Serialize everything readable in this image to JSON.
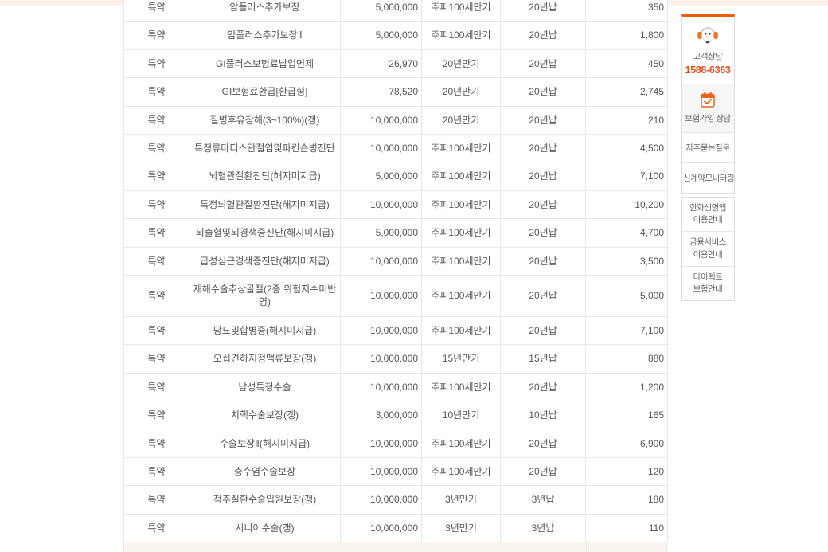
{
  "table": {
    "type_label": "특약",
    "rows": [
      {
        "type": "특약",
        "name": "암플러스추가보장",
        "amount": "5,000,000",
        "term": "주피100세만기",
        "payment": "20년납",
        "premium": "350",
        "tall": false
      },
      {
        "type": "특약",
        "name": "암플러스추가보장Ⅱ",
        "amount": "5,000,000",
        "term": "주피100세만기",
        "payment": "20년납",
        "premium": "1,800",
        "tall": false
      },
      {
        "type": "특약",
        "name": "GI플러스보험료납입면제",
        "amount": "26,970",
        "term": "20년만기",
        "payment": "20년납",
        "premium": "450",
        "tall": false
      },
      {
        "type": "특약",
        "name": "GI보험료환급[환급형]",
        "amount": "78,520",
        "term": "20년만기",
        "payment": "20년납",
        "premium": "2,745",
        "tall": false
      },
      {
        "type": "특약",
        "name": "질병후유장해(3~100%)(갱)",
        "amount": "10,000,000",
        "term": "20년만기",
        "payment": "20년납",
        "premium": "210",
        "tall": false
      },
      {
        "type": "특약",
        "name": "특정류마티스관절염및파킨슨병진단",
        "amount": "10,000,000",
        "term": "주피100세만기",
        "payment": "20년납",
        "premium": "4,500",
        "tall": false
      },
      {
        "type": "특약",
        "name": "뇌혈관질환진단(해지미지급)",
        "amount": "5,000,000",
        "term": "주피100세만기",
        "payment": "20년납",
        "premium": "7,100",
        "tall": false
      },
      {
        "type": "특약",
        "name": "특정뇌혈관질환진단(해지미지급)",
        "amount": "10,000,000",
        "term": "주피100세만기",
        "payment": "20년납",
        "premium": "10,200",
        "tall": false
      },
      {
        "type": "특약",
        "name": "뇌출혈및뇌경색증진단(해지미지급)",
        "amount": "5,000,000",
        "term": "주피100세만기",
        "payment": "20년납",
        "premium": "4,700",
        "tall": false
      },
      {
        "type": "특약",
        "name": "급성심근경색증진단(해지미지급)",
        "amount": "10,000,000",
        "term": "주피100세만기",
        "payment": "20년납",
        "premium": "3,500",
        "tall": false
      },
      {
        "type": "특약",
        "name": "재해수술추상골절(2종 위험지수미반영)",
        "amount": "10,000,000",
        "term": "주피100세만기",
        "payment": "20년납",
        "premium": "5,000",
        "tall": true
      },
      {
        "type": "특약",
        "name": "당뇨및합병증(해지미지급)",
        "amount": "10,000,000",
        "term": "주피100세만기",
        "payment": "20년납",
        "premium": "7,100",
        "tall": false
      },
      {
        "type": "특약",
        "name": "오십견하지정맥류보장(갱)",
        "amount": "10,000,000",
        "term": "15년만기",
        "payment": "15년납",
        "premium": "880",
        "tall": false
      },
      {
        "type": "특약",
        "name": "남성특정수술",
        "amount": "10,000,000",
        "term": "주피100세만기",
        "payment": "20년납",
        "premium": "1,200",
        "tall": false
      },
      {
        "type": "특약",
        "name": "치핵수술보장(갱)",
        "amount": "3,000,000",
        "term": "10년만기",
        "payment": "10년납",
        "premium": "165",
        "tall": false
      },
      {
        "type": "특약",
        "name": "수술보장Ⅱ(해지미지급)",
        "amount": "10,000,000",
        "term": "주피100세만기",
        "payment": "20년납",
        "premium": "6,900",
        "tall": false
      },
      {
        "type": "특약",
        "name": "충수염수술보장",
        "amount": "10,000,000",
        "term": "주피100세만기",
        "payment": "20년납",
        "premium": "120",
        "tall": false
      },
      {
        "type": "특약",
        "name": "척추질환수술입원보장(갱)",
        "amount": "10,000,000",
        "term": "3년만기",
        "payment": "3년납",
        "premium": "180",
        "tall": false
      },
      {
        "type": "특약",
        "name": "시니어수술(갱)",
        "amount": "10,000,000",
        "term": "3년만기",
        "payment": "3년납",
        "premium": "110",
        "tall": false
      }
    ]
  },
  "sidebar": {
    "accent_color": "#ec5d0e",
    "phone_color": "#ee4a1c",
    "customer_service": {
      "label": "고객상담",
      "phone": "1588-6363",
      "icon": "headset-agent-icon"
    },
    "consult": {
      "label": "보험가입 상담",
      "icon": "calendar-check-icon"
    },
    "faq_label": "자주묻는질문",
    "monitoring_label": "신계약모니터링",
    "guide_items": [
      {
        "line1": "한화생명앱",
        "line2": "이용안내"
      },
      {
        "line1": "금융서비스",
        "line2": "이용안내"
      },
      {
        "line1": "다이렉트",
        "line2": "보험안내"
      }
    ]
  }
}
